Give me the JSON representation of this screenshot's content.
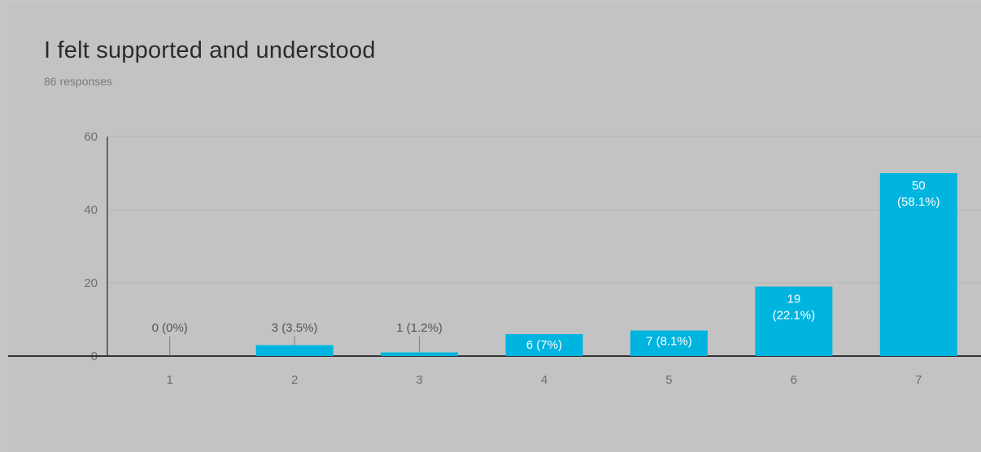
{
  "chart_data": {
    "type": "bar",
    "title": "I felt supported and understood",
    "subtitle": "86 responses",
    "categories": [
      "1",
      "2",
      "3",
      "4",
      "5",
      "6",
      "7"
    ],
    "values": [
      0,
      3,
      1,
      6,
      7,
      19,
      50
    ],
    "labels": [
      "0 (0%)",
      "3 (3.5%)",
      "1 (1.2%)",
      "6 (7%)",
      "7 (8.1%)",
      "19 (22.1%)",
      "50 (58.1%)"
    ],
    "yticks": [
      "0",
      "20",
      "40",
      "60"
    ],
    "ylim": [
      0,
      60
    ],
    "grid": true,
    "bar_color": "#00b4e0",
    "legend": "none"
  }
}
